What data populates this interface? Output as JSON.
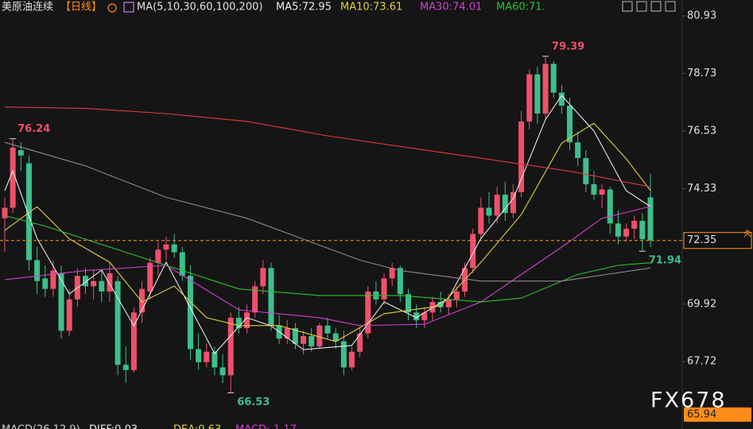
{
  "chart_data": {
    "type": "candlestick",
    "title": "美原油连续",
    "period": "【日线】",
    "indicator": "MA(5,10,30,60,100,200)",
    "open": [
      73.2,
      73.6,
      75.8,
      75.3,
      71.6,
      70.9,
      70.5,
      71.1,
      68.9,
      70.1,
      71.0,
      70.6,
      70.8,
      70.4,
      70.8,
      67.6,
      67.4,
      69.6,
      70.4,
      71.5,
      72.0,
      72.2,
      71.9,
      71.0,
      68.2,
      67.7,
      68.1,
      67.5,
      67.2,
      69.4,
      69.0,
      69.6,
      70.6,
      71.3,
      69.1,
      68.6,
      69.0,
      68.4,
      68.7,
      68.3,
      69.1,
      68.8,
      68.5,
      67.5,
      68.1,
      68.8,
      70.4,
      70.1,
      70.9,
      71.3,
      70.3,
      69.6,
      69.3,
      69.6,
      70.0,
      69.8,
      70.1,
      70.4,
      71.3,
      72.6,
      73.6,
      73.3,
      74.1,
      73.4,
      74.2,
      76.9,
      78.7,
      77.2,
      79.1,
      78.0,
      77.5,
      76.1,
      75.5,
      74.5,
      74.1,
      74.3,
      73.0,
      72.5,
      72.8,
      73.1,
      74.0
    ],
    "high": [
      74.0,
      76.24,
      76.1,
      75.6,
      72.1,
      71.4,
      71.6,
      71.4,
      70.5,
      71.3,
      71.3,
      71.2,
      71.2,
      71.5,
      71.0,
      68.3,
      69.8,
      70.8,
      71.7,
      72.3,
      72.5,
      72.6,
      72.1,
      71.4,
      68.8,
      68.4,
      68.3,
      68.0,
      69.6,
      69.8,
      69.9,
      70.8,
      71.6,
      71.5,
      69.5,
      69.3,
      69.2,
      68.9,
      69.0,
      69.2,
      69.4,
      69.0,
      68.9,
      68.3,
      69.0,
      70.6,
      70.8,
      71.1,
      71.5,
      71.4,
      70.5,
      69.9,
      69.8,
      70.2,
      70.4,
      70.3,
      70.6,
      71.5,
      72.8,
      74.0,
      74.2,
      74.4,
      74.6,
      74.5,
      77.3,
      78.9,
      79.0,
      79.39,
      79.2,
      78.3,
      77.8,
      76.5,
      75.8,
      75.0,
      74.5,
      74.4,
      73.5,
      73.0,
      73.3,
      73.4,
      74.9
    ],
    "low": [
      71.9,
      73.4,
      75.0,
      71.2,
      70.3,
      70.2,
      70.2,
      68.6,
      68.7,
      69.8,
      70.3,
      70.1,
      70.0,
      70.0,
      67.2,
      66.9,
      67.3,
      69.2,
      70.1,
      71.0,
      71.6,
      71.7,
      70.8,
      67.8,
      67.4,
      67.5,
      67.2,
      66.9,
      66.53,
      68.8,
      68.8,
      69.4,
      70.3,
      68.9,
      68.4,
      68.4,
      68.2,
      68.0,
      68.1,
      68.2,
      68.6,
      68.2,
      67.2,
      67.4,
      67.9,
      68.6,
      69.9,
      69.9,
      70.6,
      70.0,
      69.3,
      69.0,
      69.0,
      69.3,
      69.6,
      69.5,
      69.8,
      70.2,
      71.1,
      72.4,
      73.0,
      73.0,
      73.1,
      73.2,
      74.0,
      76.6,
      76.8,
      77.0,
      77.8,
      77.2,
      75.8,
      75.2,
      74.2,
      73.9,
      73.6,
      72.6,
      72.2,
      72.3,
      72.4,
      71.94,
      72.1
    ],
    "close": [
      73.6,
      75.9,
      75.6,
      71.6,
      70.8,
      70.5,
      71.2,
      68.9,
      70.1,
      71.0,
      70.6,
      70.8,
      70.4,
      71.1,
      67.6,
      67.4,
      69.6,
      70.5,
      71.5,
      72.0,
      72.2,
      71.9,
      71.0,
      68.2,
      67.7,
      68.1,
      67.5,
      67.2,
      69.4,
      69.0,
      69.6,
      70.6,
      71.3,
      69.1,
      68.6,
      69.0,
      68.4,
      68.7,
      68.3,
      69.1,
      68.8,
      68.5,
      67.5,
      68.1,
      68.8,
      70.4,
      70.1,
      70.9,
      71.3,
      70.3,
      69.6,
      69.3,
      69.6,
      70.0,
      69.8,
      70.1,
      70.4,
      71.3,
      72.6,
      73.6,
      73.3,
      74.1,
      73.4,
      74.2,
      76.9,
      78.7,
      77.2,
      79.1,
      78.0,
      77.5,
      76.1,
      75.5,
      74.5,
      74.1,
      74.3,
      73.0,
      72.5,
      72.8,
      73.1,
      72.4,
      72.35
    ],
    "up_color": "#f0506a",
    "down_color": "#3dbf8c",
    "series": [
      {
        "name": "MA5:72.95",
        "color": "#e8e8e8",
        "x": [
          0,
          1,
          4,
          8,
          12,
          16,
          20,
          26,
          30,
          33,
          37,
          43,
          47,
          51,
          55,
          59,
          63,
          67,
          69,
          73,
          77,
          80
        ],
        "values": [
          74.25,
          75.01,
          72.43,
          70.31,
          71.22,
          69.09,
          71.52,
          68.03,
          69.4,
          69.09,
          68.18,
          68.34,
          70.0,
          69.4,
          70.16,
          72.43,
          73.95,
          76.98,
          77.89,
          76.53,
          74.25,
          73.65
        ]
      },
      {
        "name": "MA10:73.61",
        "color": "#e0d040",
        "x": [
          0,
          4,
          8,
          13,
          17,
          21,
          25,
          29,
          34,
          41,
          47,
          54,
          59,
          64,
          69,
          73,
          77,
          80
        ],
        "values": [
          72.74,
          73.64,
          72.41,
          71.52,
          70.0,
          70.61,
          69.4,
          69.1,
          69.1,
          68.49,
          69.55,
          69.85,
          71.52,
          73.34,
          76.07,
          76.83,
          75.47,
          74.26
        ]
      },
      {
        "name": "MA30:74.01",
        "color": "#d040d0",
        "x": [
          0,
          10,
          20,
          29,
          39,
          44,
          52,
          59,
          64,
          69,
          74,
          80
        ],
        "values": [
          70.85,
          71.2,
          71.4,
          69.7,
          69.4,
          69.1,
          69.15,
          70.0,
          71.05,
          72.1,
          73.2,
          73.65
        ]
      },
      {
        "name": "MA60:71.",
        "color": "#30c030",
        "x": [
          0,
          5,
          10,
          20,
          29,
          39,
          49,
          59,
          64,
          71,
          76,
          80
        ],
        "values": [
          73.3,
          72.9,
          72.4,
          71.4,
          70.5,
          70.25,
          70.25,
          70.0,
          70.15,
          71.05,
          71.4,
          71.5
        ]
      },
      {
        "color": "#8a8a8a",
        "x": [
          0,
          10,
          20,
          30,
          37,
          44,
          49,
          59,
          69,
          80
        ],
        "values": [
          76.1,
          75.2,
          74.0,
          73.2,
          72.4,
          71.6,
          71.2,
          70.8,
          70.8,
          71.3
        ]
      },
      {
        "color": "#e03a3a",
        "x": [
          0,
          10,
          20,
          30,
          40,
          50,
          60,
          70,
          80
        ],
        "values": [
          77.45,
          77.4,
          77.2,
          76.9,
          76.35,
          75.9,
          75.45,
          75.0,
          74.4
        ]
      }
    ],
    "annotations": [
      {
        "index": 1,
        "value": 76.24,
        "color": "#f0506a"
      },
      {
        "index": 67,
        "value": 79.39,
        "color": "#f0506a"
      },
      {
        "index": 28,
        "value": 66.53,
        "color": "#3dbf8c"
      },
      {
        "index": 79,
        "value": 71.94,
        "color": "#3dbf8c"
      }
    ],
    "ylim": [
      65.45,
      81.54
    ],
    "yticks": [
      80.93,
      78.73,
      76.53,
      74.33,
      69.92,
      67.72
    ],
    "last_price": 72.35,
    "axis_min_label": 65.94,
    "watermark": "FX678",
    "macd": {
      "title": "MACD(26,12,9)",
      "diff": "DIFF:0.03",
      "dea": "DEA:0.63",
      "macd": "MACD:-1.17"
    }
  }
}
